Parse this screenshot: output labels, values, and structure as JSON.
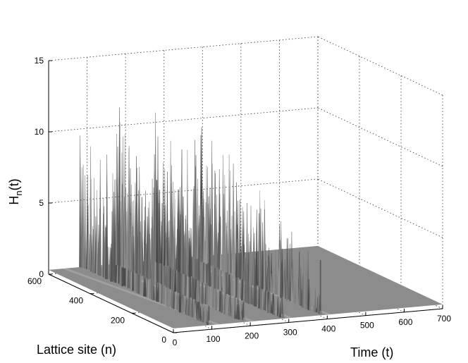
{
  "chart_data": {
    "type": "surface",
    "title": "",
    "xlabel": "Time (t)",
    "ylabel": "Lattice site (n)",
    "zlabel_main": "H",
    "zlabel_sub": "n",
    "zlabel_tail": "(t)",
    "xlim": [
      0,
      700
    ],
    "ylim": [
      0,
      600
    ],
    "zlim": [
      0,
      15
    ],
    "x_ticks": [
      "0",
      "100",
      "200",
      "300",
      "400",
      "500",
      "600",
      "700"
    ],
    "y_ticks": [
      "0",
      "200",
      "400",
      "600"
    ],
    "z_ticks": [
      "0",
      "5",
      "10",
      "15"
    ],
    "grid": true,
    "colormap": "gray",
    "background_level": 0.3,
    "bursts": [
      {
        "t_start": 110,
        "t_peak": 110,
        "n_range": [
          0,
          600
        ],
        "max_height": 10.5
      },
      {
        "t_start": 200,
        "t_peak": 200,
        "n_range": [
          0,
          600
        ],
        "max_height": 11.8
      },
      {
        "t_start": 300,
        "t_peak": 300,
        "n_range": [
          0,
          600
        ],
        "max_height": 11.3
      },
      {
        "t_start": 400,
        "t_peak": 400,
        "n_range": [
          0,
          600
        ],
        "max_height": 11.0
      }
    ]
  }
}
